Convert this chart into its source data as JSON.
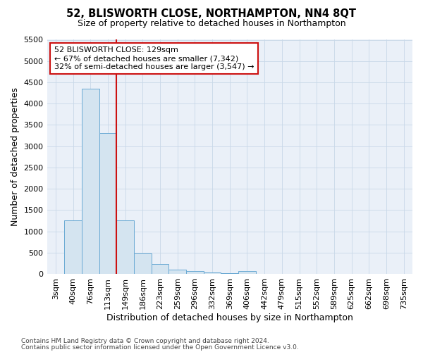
{
  "title": "52, BLISWORTH CLOSE, NORTHAMPTON, NN4 8QT",
  "subtitle": "Size of property relative to detached houses in Northampton",
  "xlabel": "Distribution of detached houses by size in Northampton",
  "ylabel": "Number of detached properties",
  "footnote1": "Contains HM Land Registry data © Crown copyright and database right 2024.",
  "footnote2": "Contains public sector information licensed under the Open Government Licence v3.0.",
  "annotation_line1": "52 BLISWORTH CLOSE: 129sqm",
  "annotation_line2": "← 67% of detached houses are smaller (7,342)",
  "annotation_line3": "32% of semi-detached houses are larger (3,547) →",
  "bar_color": "#d4e4f0",
  "bar_edge_color": "#6aaad4",
  "grid_color": "#c8d8e8",
  "plot_bg_color": "#eaf0f8",
  "red_line_color": "#cc1111",
  "annotation_box_edge": "#cc1111",
  "ylim": [
    0,
    5500
  ],
  "yticks": [
    0,
    500,
    1000,
    1500,
    2000,
    2500,
    3000,
    3500,
    4000,
    4500,
    5000,
    5500
  ],
  "categories": [
    "3sqm",
    "40sqm",
    "76sqm",
    "113sqm",
    "149sqm",
    "186sqm",
    "223sqm",
    "259sqm",
    "296sqm",
    "332sqm",
    "369sqm",
    "406sqm",
    "442sqm",
    "479sqm",
    "515sqm",
    "552sqm",
    "589sqm",
    "625sqm",
    "662sqm",
    "698sqm",
    "735sqm"
  ],
  "values": [
    0,
    1260,
    4350,
    3300,
    1260,
    480,
    230,
    100,
    70,
    30,
    15,
    70,
    0,
    0,
    0,
    0,
    0,
    0,
    0,
    0,
    0
  ],
  "red_line_x": 3.5,
  "background_color": "#ffffff",
  "title_fontsize": 10.5,
  "subtitle_fontsize": 9,
  "xlabel_fontsize": 9,
  "ylabel_fontsize": 9,
  "tick_fontsize": 8,
  "annotation_fontsize": 8,
  "footnote_fontsize": 6.5
}
